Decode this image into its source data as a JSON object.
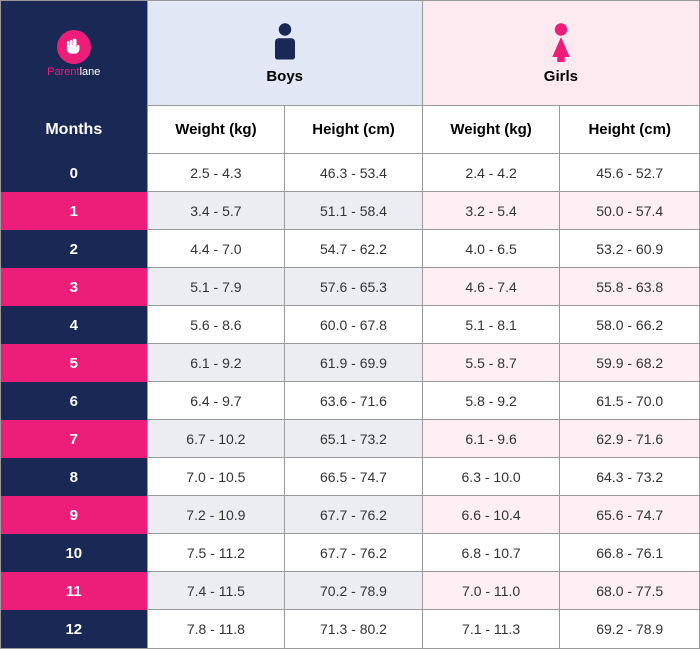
{
  "brand": {
    "part1": "Parent",
    "part2": "lane"
  },
  "headers": {
    "boys": "Boys",
    "girls": "Girls",
    "months": "Months",
    "weight": "Weight (kg)",
    "height": "Height (cm)"
  },
  "styling": {
    "navy": "#1a2855",
    "magenta": "#ed1e79",
    "boys_header_bg": "#e2e7f5",
    "girls_header_bg": "#fdeaf1",
    "boy_alt_row": "#ecedf2",
    "girl_alt_row": "#fdeff3",
    "white": "#ffffff",
    "border": "#999999",
    "month_label_fontsize": 15,
    "data_fontsize": 14,
    "header_fontsize": 15
  },
  "table": {
    "type": "table",
    "columns": [
      "Month",
      "Boys Weight (kg)",
      "Boys Height (cm)",
      "Girls Weight (kg)",
      "Girls Height (cm)"
    ],
    "rows": [
      {
        "month": "0",
        "bw": "2.5 - 4.3",
        "bh": "46.3 - 53.4",
        "gw": "2.4 - 4.2",
        "gh": "45.6 - 52.7"
      },
      {
        "month": "1",
        "bw": "3.4 - 5.7",
        "bh": "51.1 - 58.4",
        "gw": "3.2 - 5.4",
        "gh": "50.0 - 57.4"
      },
      {
        "month": "2",
        "bw": "4.4 - 7.0",
        "bh": "54.7 - 62.2",
        "gw": "4.0 - 6.5",
        "gh": "53.2 - 60.9"
      },
      {
        "month": "3",
        "bw": "5.1 - 7.9",
        "bh": "57.6 - 65.3",
        "gw": "4.6 - 7.4",
        "gh": "55.8 - 63.8"
      },
      {
        "month": "4",
        "bw": "5.6 - 8.6",
        "bh": "60.0 - 67.8",
        "gw": "5.1 - 8.1",
        "gh": "58.0 - 66.2"
      },
      {
        "month": "5",
        "bw": "6.1 - 9.2",
        "bh": "61.9 - 69.9",
        "gw": "5.5 - 8.7",
        "gh": "59.9 - 68.2"
      },
      {
        "month": "6",
        "bw": "6.4 - 9.7",
        "bh": "63.6 - 71.6",
        "gw": "5.8 - 9.2",
        "gh": "61.5 - 70.0"
      },
      {
        "month": "7",
        "bw": "6.7 - 10.2",
        "bh": "65.1 - 73.2",
        "gw": "6.1 - 9.6",
        "gh": "62.9 - 71.6"
      },
      {
        "month": "8",
        "bw": "7.0 - 10.5",
        "bh": "66.5 - 74.7",
        "gw": "6.3 - 10.0",
        "gh": "64.3 - 73.2"
      },
      {
        "month": "9",
        "bw": "7.2 - 10.9",
        "bh": "67.7 - 76.2",
        "gw": "6.6 - 10.4",
        "gh": "65.6 - 74.7"
      },
      {
        "month": "10",
        "bw": "7.5 - 11.2",
        "bh": "67.7 - 76.2",
        "gw": "6.8 - 10.7",
        "gh": "66.8 - 76.1"
      },
      {
        "month": "11",
        "bw": "7.4 - 11.5",
        "bh": "70.2 - 78.9",
        "gw": "7.0 - 11.0",
        "gh": "68.0 - 77.5"
      },
      {
        "month": "12",
        "bw": "7.8 - 11.8",
        "bh": "71.3 - 80.2",
        "gw": "7.1 - 11.3",
        "gh": "69.2 - 78.9"
      }
    ]
  }
}
